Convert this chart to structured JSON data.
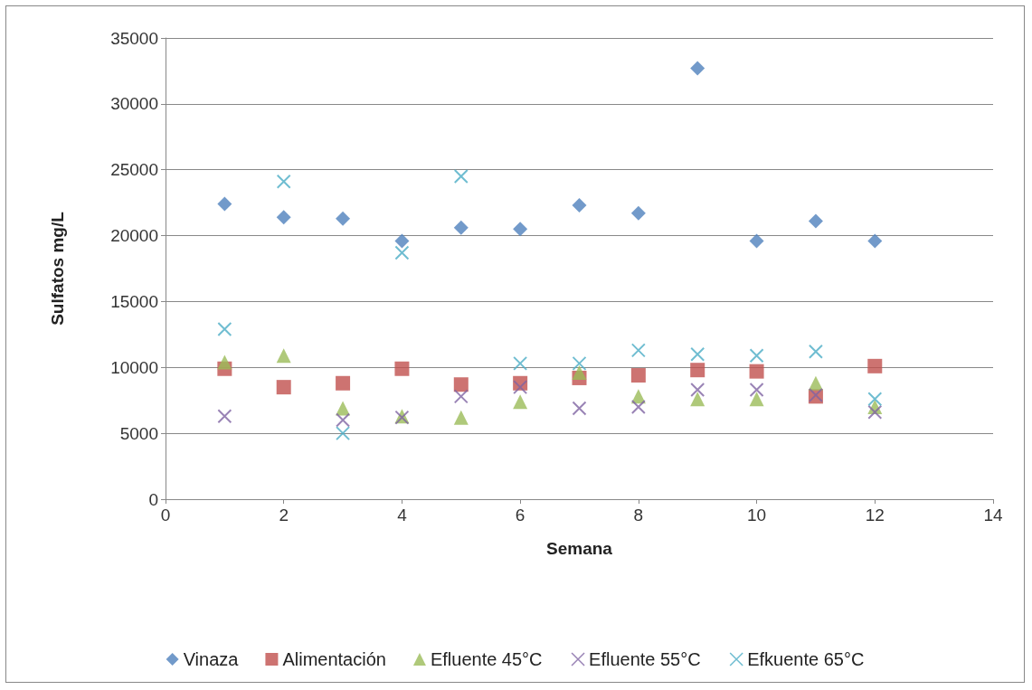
{
  "chart_data": {
    "type": "scatter",
    "xlabel": "Semana",
    "ylabel": "Sulfatos mg/L",
    "x": [
      1,
      2,
      3,
      4,
      5,
      6,
      7,
      8,
      9,
      10,
      11,
      12
    ],
    "series": [
      {
        "name": "Vinaza",
        "color": "#4f81bd",
        "marker": "diamond",
        "values": [
          22400,
          21400,
          21300,
          19600,
          20600,
          20500,
          22300,
          21700,
          32700,
          19600,
          21100,
          19600
        ]
      },
      {
        "name": "Alimentación",
        "color": "#c0504d",
        "marker": "square",
        "values": [
          9900,
          8500,
          8800,
          9900,
          8700,
          8800,
          9200,
          9400,
          9800,
          9700,
          7800,
          10100
        ]
      },
      {
        "name": "Efluente 45°C",
        "color": "#9bbb59",
        "marker": "triangle",
        "values": [
          10400,
          10900,
          6900,
          6300,
          6200,
          7400,
          9600,
          7800,
          7600,
          7600,
          8800,
          7000
        ]
      },
      {
        "name": "Efluente 55°C",
        "color": "#8064a2",
        "marker": "cross",
        "values": [
          6300,
          null,
          6000,
          6200,
          7800,
          8500,
          6900,
          7000,
          8300,
          8300,
          7900,
          6600
        ]
      },
      {
        "name": "Efkuente 65°C",
        "color": "#4bacc6",
        "marker": "cross",
        "values": [
          12900,
          24100,
          5000,
          18700,
          24500,
          10300,
          10300,
          11300,
          11000,
          10900,
          11200,
          7600
        ]
      }
    ],
    "xlim": [
      0,
      14
    ],
    "xticks": [
      0,
      2,
      4,
      6,
      8,
      10,
      12,
      14
    ],
    "ylim": [
      0,
      35000
    ],
    "yticks": [
      0,
      5000,
      10000,
      15000,
      20000,
      25000,
      30000,
      35000
    ],
    "grid": "y",
    "legend": "bottom"
  }
}
